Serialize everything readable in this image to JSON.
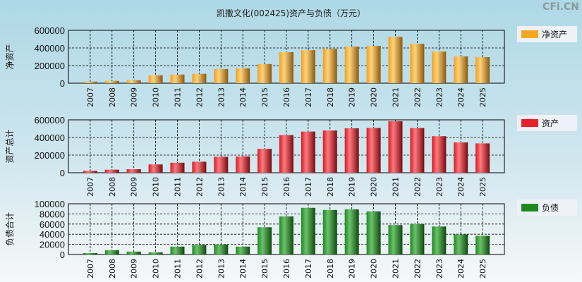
{
  "title": "凯撒文化(002425)资产与负债（万元）",
  "watermark": "CFi.CN",
  "chart_data": [
    {
      "type": "bar",
      "ylabel": "净资产",
      "legend": "净资产",
      "color": "#f5a623",
      "ylim": [
        0,
        600000
      ],
      "yticks": [
        "0",
        "200000",
        "400000",
        "600000"
      ],
      "categories": [
        "2007",
        "2008",
        "2009",
        "2010",
        "2011",
        "2012",
        "2013",
        "2014",
        "2015",
        "2016",
        "2017",
        "2018",
        "2019",
        "2020",
        "2021",
        "2022",
        "2023",
        "2024",
        "2025"
      ],
      "values": [
        18500,
        26000,
        34000,
        90000,
        98000,
        106000,
        161000,
        169000,
        217000,
        352000,
        375000,
        391000,
        415000,
        423000,
        526000,
        447000,
        359000,
        304000,
        296000
      ]
    },
    {
      "type": "bar",
      "ylabel": "资产总计",
      "legend": "资产",
      "color": "#e8202a",
      "ylim": [
        0,
        600000
      ],
      "yticks": [
        "0",
        "200000",
        "400000",
        "600000"
      ],
      "categories": [
        "2007",
        "2008",
        "2009",
        "2010",
        "2011",
        "2012",
        "2013",
        "2014",
        "2015",
        "2016",
        "2017",
        "2018",
        "2019",
        "2020",
        "2021",
        "2022",
        "2023",
        "2024",
        "2025"
      ],
      "values": [
        21300,
        34500,
        39700,
        94200,
        113600,
        124900,
        180800,
        184600,
        270800,
        427000,
        467000,
        478700,
        504000,
        508000,
        584000,
        507000,
        414200,
        343600,
        332800
      ]
    },
    {
      "type": "bar",
      "ylabel": "负债合计",
      "legend": "负债",
      "color": "#1e8a1e",
      "ylim": [
        0,
        100000
      ],
      "yticks": [
        "0",
        "20000",
        "40000",
        "60000",
        "80000",
        "100000"
      ],
      "categories": [
        "2007",
        "2008",
        "2009",
        "2010",
        "2011",
        "2012",
        "2013",
        "2014",
        "2015",
        "2016",
        "2017",
        "2018",
        "2019",
        "2020",
        "2021",
        "2022",
        "2023",
        "2024",
        "2025"
      ],
      "values": [
        2800,
        8500,
        5700,
        4200,
        15600,
        18900,
        19800,
        15600,
        53800,
        75000,
        92000,
        87700,
        89000,
        85000,
        58000,
        60000,
        55200,
        39600,
        36800
      ]
    }
  ]
}
